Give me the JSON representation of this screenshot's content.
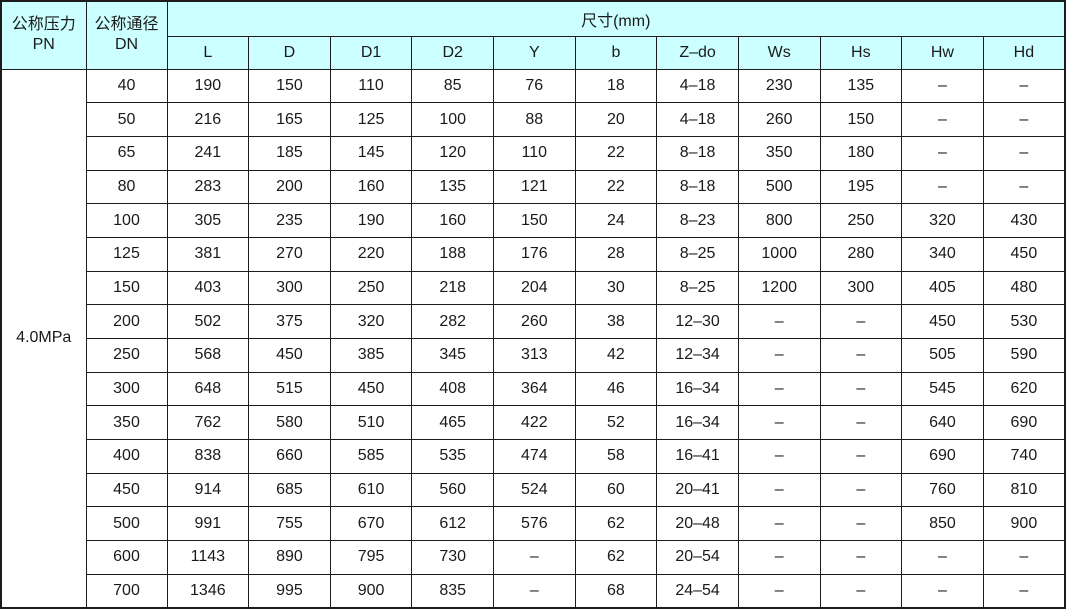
{
  "colors": {
    "header_bg": "#ccffff",
    "border": "#1c1c1c",
    "text": "#1a1a1a"
  },
  "table": {
    "header": {
      "pressure_label": "公称压力\nPN",
      "diameter_label": "公称通径\nDN",
      "size_label": "尺寸(mm)",
      "columns": [
        "L",
        "D",
        "D1",
        "D2",
        "Y",
        "b",
        "Z–do",
        "Ws",
        "Hs",
        "Hw",
        "Hd"
      ]
    },
    "pressure_value": "4.0MPa",
    "rows": [
      {
        "dn": "40",
        "values": [
          "190",
          "150",
          "110",
          "85",
          "76",
          "18",
          "4–18",
          "230",
          "135",
          "–",
          "–"
        ]
      },
      {
        "dn": "50",
        "values": [
          "216",
          "165",
          "125",
          "100",
          "88",
          "20",
          "4–18",
          "260",
          "150",
          "–",
          "–"
        ]
      },
      {
        "dn": "65",
        "values": [
          "241",
          "185",
          "145",
          "120",
          "110",
          "22",
          "8–18",
          "350",
          "180",
          "–",
          "–"
        ]
      },
      {
        "dn": "80",
        "values": [
          "283",
          "200",
          "160",
          "135",
          "121",
          "22",
          "8–18",
          "500",
          "195",
          "–",
          "–"
        ]
      },
      {
        "dn": "100",
        "values": [
          "305",
          "235",
          "190",
          "160",
          "150",
          "24",
          "8–23",
          "800",
          "250",
          "320",
          "430"
        ]
      },
      {
        "dn": "125",
        "values": [
          "381",
          "270",
          "220",
          "188",
          "176",
          "28",
          "8–25",
          "1000",
          "280",
          "340",
          "450"
        ]
      },
      {
        "dn": "150",
        "values": [
          "403",
          "300",
          "250",
          "218",
          "204",
          "30",
          "8–25",
          "1200",
          "300",
          "405",
          "480"
        ]
      },
      {
        "dn": "200",
        "values": [
          "502",
          "375",
          "320",
          "282",
          "260",
          "38",
          "12–30",
          "–",
          "–",
          "450",
          "530"
        ]
      },
      {
        "dn": "250",
        "values": [
          "568",
          "450",
          "385",
          "345",
          "313",
          "42",
          "12–34",
          "–",
          "–",
          "505",
          "590"
        ]
      },
      {
        "dn": "300",
        "values": [
          "648",
          "515",
          "450",
          "408",
          "364",
          "46",
          "16–34",
          "–",
          "–",
          "545",
          "620"
        ]
      },
      {
        "dn": "350",
        "values": [
          "762",
          "580",
          "510",
          "465",
          "422",
          "52",
          "16–34",
          "–",
          "–",
          "640",
          "690"
        ]
      },
      {
        "dn": "400",
        "values": [
          "838",
          "660",
          "585",
          "535",
          "474",
          "58",
          "16–41",
          "–",
          "–",
          "690",
          "740"
        ]
      },
      {
        "dn": "450",
        "values": [
          "914",
          "685",
          "610",
          "560",
          "524",
          "60",
          "20–41",
          "–",
          "–",
          "760",
          "810"
        ]
      },
      {
        "dn": "500",
        "values": [
          "991",
          "755",
          "670",
          "612",
          "576",
          "62",
          "20–48",
          "–",
          "–",
          "850",
          "900"
        ]
      },
      {
        "dn": "600",
        "values": [
          "1143",
          "890",
          "795",
          "730",
          "–",
          "62",
          "20–54",
          "–",
          "–",
          "–",
          "–"
        ]
      },
      {
        "dn": "700",
        "values": [
          "1346",
          "995",
          "900",
          "835",
          "–",
          "68",
          "24–54",
          "–",
          "–",
          "–",
          "–"
        ]
      }
    ]
  }
}
